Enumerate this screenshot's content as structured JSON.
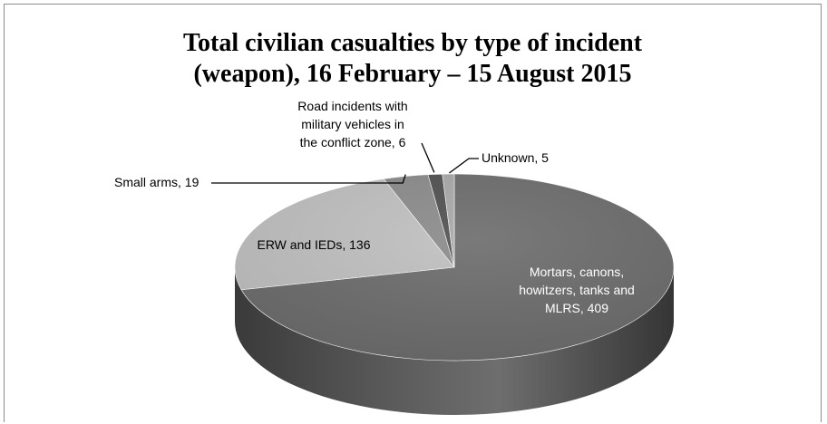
{
  "chart_data": {
    "type": "pie",
    "title_lines": [
      "Total civilian casualties by type of incident",
      "(weapon), 16 February – 15 August 2015"
    ],
    "slices": [
      {
        "label": "Mortars, canons, howitzers, tanks and MLRS",
        "value": 409,
        "color": "#6b6b6b",
        "label_lines": [
          "Mortars, canons,",
          "howitzers, tanks and",
          "MLRS, 409"
        ],
        "label_color": "#ffffff"
      },
      {
        "label": "ERW and IEDs",
        "value": 136,
        "color": "#bfbfbf",
        "label_lines": [
          "ERW and IEDs, 136"
        ],
        "label_color": "#000000"
      },
      {
        "label": "Small arms",
        "value": 19,
        "color": "#8a8a8a",
        "label_lines": [
          "Small arms, 19"
        ],
        "label_color": "#000000"
      },
      {
        "label": "Road incidents with military vehicles in the conflict zone",
        "value": 6,
        "color": "#4f4f4f",
        "label_lines": [
          "Road incidents with",
          "military vehicles in",
          "the conflict zone, 6"
        ],
        "label_color": "#000000"
      },
      {
        "label": "Unknown",
        "value": 5,
        "color": "#a8a8a8",
        "label_lines": [
          "Unknown, 5"
        ],
        "label_color": "#000000"
      }
    ],
    "style": "3d-pie",
    "start_angle_deg": -90,
    "direction": "clockwise"
  }
}
